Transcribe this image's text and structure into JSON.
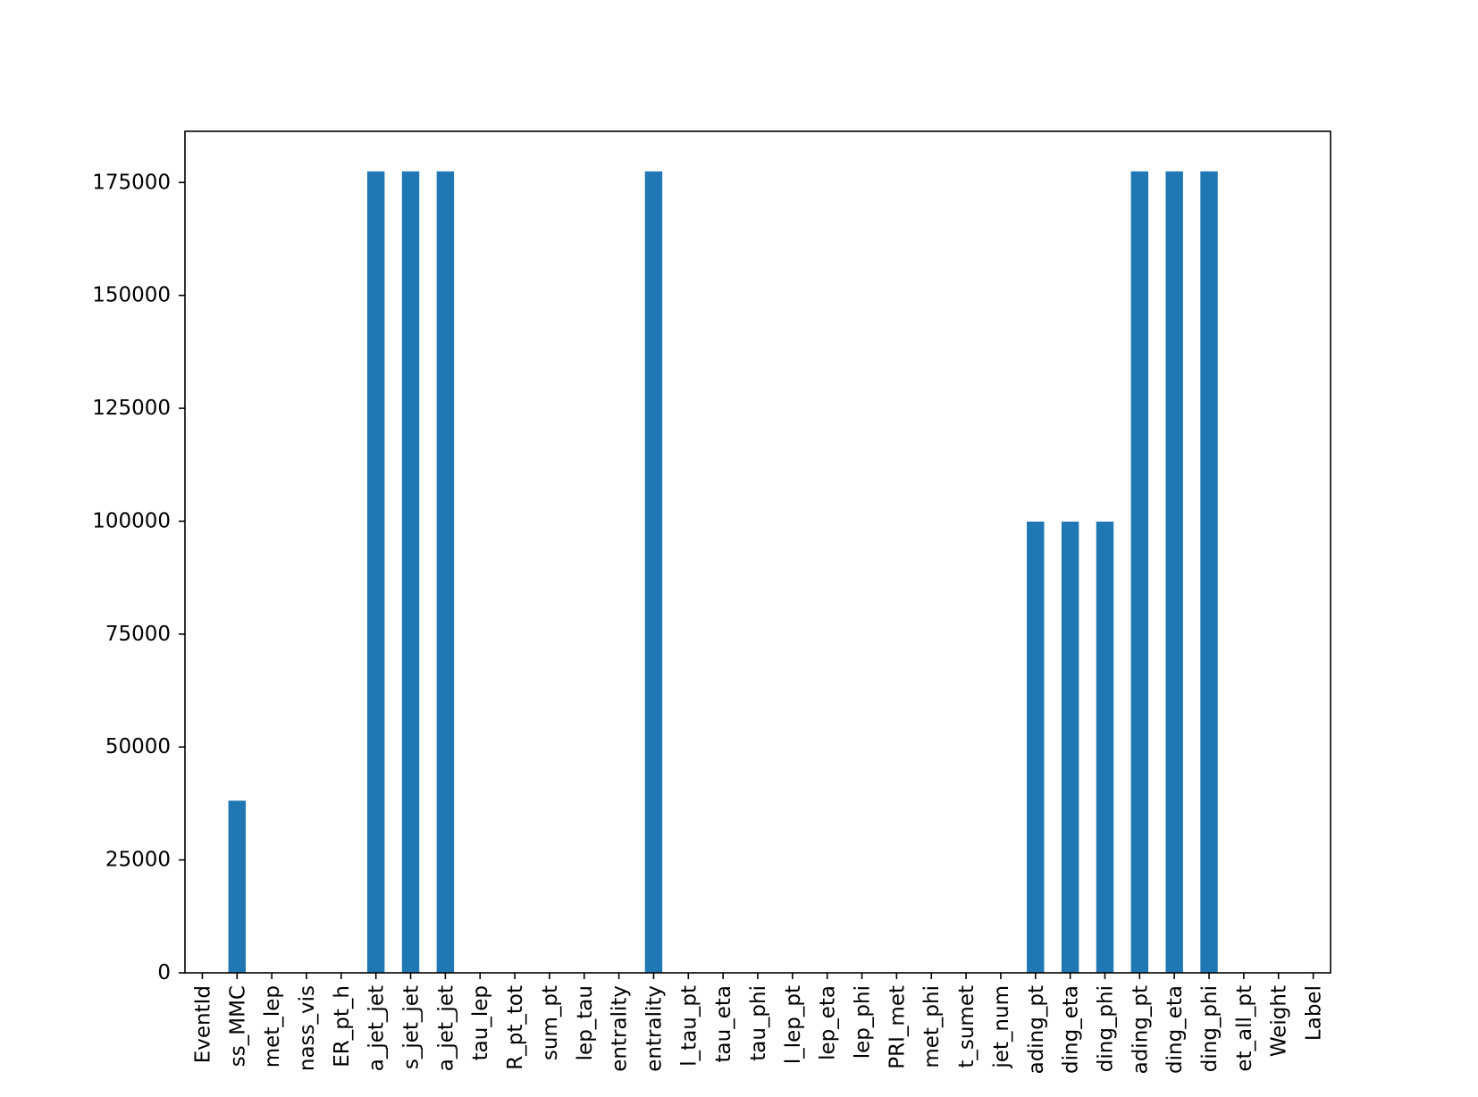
{
  "chart_data": {
    "type": "bar",
    "title": "",
    "xlabel": "",
    "ylabel": "",
    "categories": [
      "EventId",
      "ss_MMC",
      "met_lep",
      "nass_vis",
      "ER_pt_h",
      "a_jet_jet",
      "s_jet_jet",
      "a_jet_jet",
      "tau_lep",
      "R_pt_tot",
      "sum_pt",
      "lep_tau",
      "entrality",
      "entrality",
      "l_tau_pt",
      "tau_eta",
      "tau_phi",
      "l_lep_pt",
      "lep_eta",
      "lep_phi",
      "PRI_met",
      "met_phi",
      "t_sumet",
      "jet_num",
      "ading_pt",
      "ding_eta",
      "ding_phi",
      "ading_pt",
      "ding_eta",
      "ding_phi",
      "et_all_pt",
      "Weight",
      "Label"
    ],
    "values": [
      0,
      38114,
      0,
      0,
      0,
      177457,
      177457,
      177457,
      0,
      0,
      0,
      0,
      0,
      177457,
      0,
      0,
      0,
      0,
      0,
      0,
      0,
      0,
      0,
      0,
      99913,
      99913,
      99913,
      177457,
      177457,
      177457,
      0,
      0,
      0
    ],
    "ylim": [
      0,
      186328
    ],
    "yticks": [
      0,
      25000,
      50000,
      75000,
      100000,
      125000,
      150000,
      175000
    ],
    "ytick_labels": [
      "0",
      "25000",
      "50000",
      "75000",
      "100000",
      "125000",
      "150000",
      "175000"
    ],
    "bar_color": "#1f77b4",
    "grid": false,
    "legend": "none"
  }
}
